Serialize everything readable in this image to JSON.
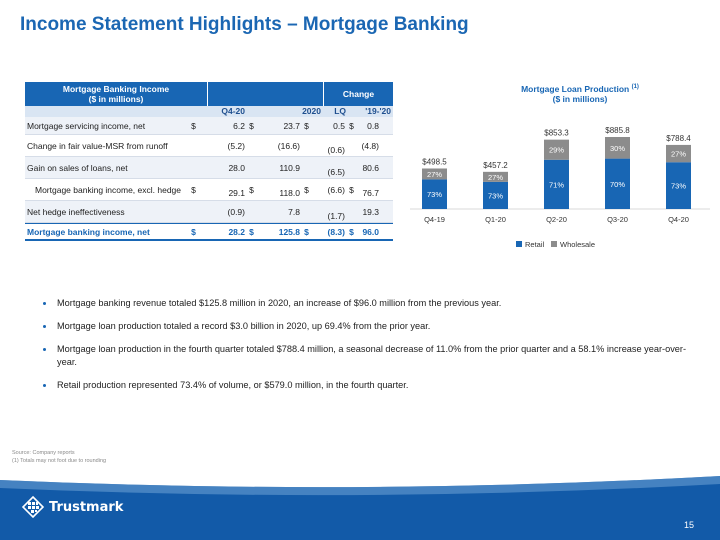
{
  "title": "Income Statement Highlights – Mortgage Banking",
  "table": {
    "header_line1": "Mortgage Banking Income",
    "header_line2": "($ in millions)",
    "change_header": "Change",
    "cols": [
      "Q4-20",
      "2020",
      "LQ",
      "'19-'20"
    ],
    "rows": [
      {
        "label": "Mortgage servicing income, net",
        "q4": "6.2",
        "y2020": "23.7",
        "lq": "0.5",
        "yoy": "0.8",
        "dollar": "$"
      },
      {
        "label": "Change in fair value-MSR from runoff",
        "q4": "(5.2)",
        "y2020": "(16.6)",
        "lq": "(0.6)",
        "yoy": "(4.8)",
        "dollar": ""
      },
      {
        "label": "Gain on sales of loans, net",
        "q4": "28.0",
        "y2020": "110.9",
        "lq": "(6.5)",
        "yoy": "80.6",
        "dollar": ""
      },
      {
        "label": "Mortgage banking income, excl. hedge",
        "q4": "29.1",
        "y2020": "118.0",
        "lq": "(6.6)",
        "yoy": "76.7",
        "dollar": "$"
      },
      {
        "label": "Net hedge ineffectiveness",
        "q4": "(0.9)",
        "y2020": "7.8",
        "lq": "(1.7)",
        "yoy": "19.3",
        "dollar": ""
      },
      {
        "label": "Mortgage banking income, net",
        "q4": "28.2",
        "y2020": "125.8",
        "lq": "(8.3)",
        "yoy": "96.0",
        "dollar": "$"
      }
    ]
  },
  "chart_title_line1": "Mortgage Loan Production",
  "chart_title_sup": "(1)",
  "chart_title_line2": "($ in millions)",
  "chart_data": {
    "type": "bar",
    "stacked": true,
    "categories": [
      "Q4-19",
      "Q1-20",
      "Q2-20",
      "Q3-20",
      "Q4-20"
    ],
    "totals": [
      498.5,
      457.2,
      853.3,
      885.8,
      788.4
    ],
    "total_labels": [
      "$498.5",
      "$457.2",
      "$853.3",
      "$885.8",
      "$788.4"
    ],
    "series": [
      {
        "name": "Retail",
        "percents": [
          73,
          73,
          71,
          70,
          73
        ],
        "labels": [
          "73%",
          "73%",
          "71%",
          "70%",
          "73%"
        ],
        "color": "#1866b4"
      },
      {
        "name": "Wholesale",
        "percents": [
          27,
          27,
          29,
          30,
          27
        ],
        "labels": [
          "27%",
          "27%",
          "29%",
          "30%",
          "27%"
        ],
        "color": "#8c8c8c"
      }
    ],
    "legend_position": "bottom"
  },
  "bullets": [
    "Mortgage banking revenue totaled $125.8 million in 2020, an increase of $96.0 million from the previous year.",
    "Mortgage loan production totaled a record $3.0 billion in 2020, up 69.4% from the prior year.",
    "Mortgage loan production in the fourth quarter totaled $788.4 million, a seasonal decrease of 11.0% from the prior quarter and a 58.1% increase year-over-year.",
    "Retail production represented 73.4% of volume, or $579.0 million, in the fourth quarter."
  ],
  "footnote1": "Source: Company reports",
  "footnote2": "(1) Totals may not foot due to rounding",
  "logo_text": "Trustmark",
  "page_number": "15"
}
